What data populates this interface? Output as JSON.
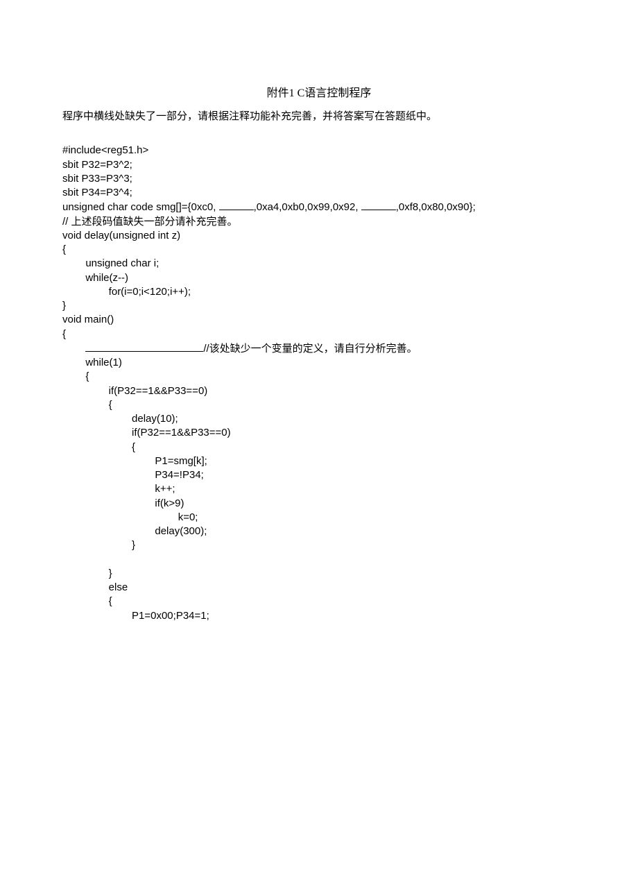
{
  "title": "附件1 C语言控制程序",
  "instruction": "程序中横线处缺失了一部分，请根据注释功能补充完善，并将答案写在答题纸中。",
  "code": {
    "line1": "#include<reg51.h>",
    "line2": "sbit P32=P3^2;",
    "line3": "sbit P33=P3^3;",
    "line4": "sbit P34=P3^4;",
    "line5_part1": "unsigned char code smg[]={0xc0, ",
    "line5_part2": ",0xa4,0xb0,0x99,0x92, ",
    "line5_part3": ",0xf8,0x80,0x90};",
    "line6": "// 上述段码值缺失一部分请补充完善。",
    "line7": "void delay(unsigned int z)",
    "line8": "{",
    "line9": "        unsigned char i;",
    "line10": "        while(z--)",
    "line11": "                for(i=0;i<120;i++);",
    "line12": "}",
    "line13": "void main()",
    "line14": "{",
    "line15_part1": "        ",
    "line15_part2": "//该处缺少一个变量的定义，请自行分析完善。",
    "line16": "        while(1)",
    "line17": "        {",
    "line18": "                if(P32==1&&P33==0)",
    "line19": "                {",
    "line20": "                        delay(10);",
    "line21": "                        if(P32==1&&P33==0)",
    "line22": "                        {",
    "line23": "                                P1=smg[k];",
    "line24": "                                P34=!P34;",
    "line25": "                                k++;",
    "line26": "                                if(k>9)",
    "line27": "                                        k=0;",
    "line28": "                                delay(300);",
    "line29": "                        }",
    "line30": "",
    "line31": "                }",
    "line32": "                else",
    "line33": "                {",
    "line34": "                        P1=0x00;P34=1;"
  }
}
